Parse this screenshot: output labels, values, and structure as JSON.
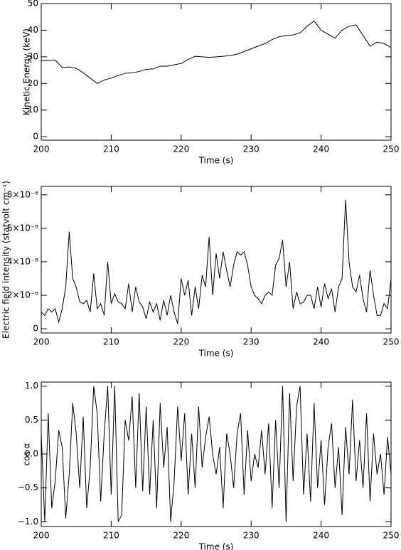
{
  "chart_data": [
    {
      "type": "line",
      "xlabel": "Time (s)",
      "ylabel": "Kinetic Energy (keV)",
      "color": "#000000",
      "xlim": [
        200,
        250
      ],
      "ylim": [
        -1.3,
        50
      ],
      "xticks": [
        200,
        210,
        220,
        230,
        240,
        250
      ],
      "yticks": [
        0,
        10,
        20,
        30,
        40,
        50
      ],
      "x": [
        200,
        201,
        202,
        203,
        204,
        205,
        206,
        207,
        208,
        209,
        210,
        211,
        212,
        213,
        214,
        215,
        216,
        217,
        218,
        219,
        220,
        221,
        222,
        223,
        224,
        225,
        226,
        227,
        228,
        229,
        230,
        231,
        232,
        233,
        234,
        235,
        236,
        237,
        238,
        239,
        240,
        241,
        242,
        243,
        244,
        245,
        246,
        247,
        248,
        249,
        250
      ],
      "values": [
        28.5,
        28.7,
        28.8,
        26,
        26.2,
        25.7,
        24,
        22,
        20,
        21.3,
        22,
        23,
        23.8,
        24,
        24.5,
        25.3,
        25.5,
        26.5,
        26.5,
        27,
        27.5,
        29,
        30.2,
        30,
        29.8,
        30,
        30.2,
        30.5,
        31,
        32,
        33,
        34,
        35,
        36.5,
        37.5,
        38,
        38.2,
        39,
        41.5,
        43.5,
        40,
        38.5,
        37,
        40,
        41.5,
        42,
        38,
        34,
        35.5,
        35,
        33.5
      ]
    },
    {
      "type": "line",
      "xlabel": "Time (s)",
      "ylabel": "Electric field intensity (statvolt cm⁻¹)",
      "color": "#000000",
      "xlim": [
        200,
        250
      ],
      "ylim": [
        -2.5e-09,
        8.5e-08
      ],
      "xticks": [
        200,
        210,
        220,
        230,
        240,
        250
      ],
      "yticks": [
        0,
        {
          "value": 2e-08,
          "label": "2×10⁻⁸"
        },
        {
          "value": 4e-08,
          "label": "4×10⁻⁸"
        },
        {
          "value": 6e-08,
          "label": "6×10⁻⁸"
        },
        {
          "value": 8e-08,
          "label": "8×10⁻⁸"
        }
      ],
      "x": [
        200,
        200.5,
        201,
        201.5,
        202,
        202.5,
        203,
        203.5,
        204,
        204.5,
        205,
        205.5,
        206,
        206.5,
        207,
        207.5,
        208,
        208.5,
        209,
        209.5,
        210,
        210.5,
        211,
        211.5,
        212,
        212.5,
        213,
        213.5,
        214,
        214.5,
        215,
        215.5,
        216,
        216.5,
        217,
        217.5,
        218,
        218.5,
        219,
        219.5,
        220,
        220.5,
        221,
        221.5,
        222,
        222.5,
        223,
        223.5,
        224,
        224.5,
        225,
        225.5,
        226,
        226.5,
        227,
        227.5,
        228,
        228.5,
        229,
        229.5,
        230,
        230.5,
        231,
        231.5,
        232,
        232.5,
        233,
        233.5,
        234,
        234.5,
        235,
        235.5,
        236,
        236.5,
        237,
        237.5,
        238,
        238.5,
        239,
        239.5,
        240,
        240.5,
        241,
        241.5,
        242,
        242.5,
        243,
        243.5,
        244,
        244.5,
        245,
        245.5,
        246,
        246.5,
        247,
        247.5,
        248,
        248.5,
        249,
        249.5,
        250
      ],
      "values": [
        1e-08,
        8e-09,
        1.2e-08,
        1e-08,
        1.2e-08,
        4e-09,
        1.2e-08,
        2.5e-08,
        5.8e-08,
        3e-08,
        2.5e-08,
        1.6e-08,
        1.5e-08,
        1.7e-08,
        1e-08,
        3.3e-08,
        1.2e-08,
        1.5e-08,
        8e-09,
        4e-08,
        1.5e-08,
        2.1e-08,
        1.6e-08,
        1.5e-08,
        1.2e-08,
        2.7e-08,
        1e-08,
        2.5e-08,
        1.6e-08,
        1.3e-08,
        6e-09,
        1.6e-08,
        1e-08,
        1.5e-08,
        5e-09,
        1.7e-08,
        8e-09,
        2e-08,
        1e-08,
        3e-09,
        3e-08,
        2e-08,
        2.9e-08,
        8e-09,
        2.5e-08,
        1.2e-08,
        3.2e-08,
        2.5e-08,
        5.5e-08,
        2e-08,
        4.5e-08,
        3e-08,
        4.6e-08,
        3.5e-08,
        2.5e-08,
        3.8e-08,
        4.6e-08,
        4.4e-08,
        4.6e-08,
        3.8e-08,
        2.5e-08,
        2e-08,
        1.8e-08,
        1.5e-08,
        2e-08,
        2.2e-08,
        2e-08,
        3.8e-08,
        4.2e-08,
        5.3e-08,
        2.5e-08,
        4e-08,
        1.2e-08,
        2.2e-08,
        1.5e-08,
        1.6e-08,
        2e-08,
        2e-08,
        1.2e-08,
        2.5e-08,
        1.3e-08,
        2.7e-08,
        1.8e-08,
        2.4e-08,
        1e-08,
        2.5e-08,
        3e-08,
        7.7e-08,
        4e-08,
        2.5e-08,
        2.2e-08,
        3.2e-08,
        1.8e-08,
        1e-08,
        3.5e-08,
        2e-08,
        8e-09,
        8e-09,
        1.5e-08,
        1.2e-08,
        3e-08
      ]
    },
    {
      "type": "line",
      "xlabel": "Time (s)",
      "ylabel": "cos α",
      "color": "#000000",
      "xlim": [
        200,
        250
      ],
      "ylim": [
        -1.07,
        1.06
      ],
      "xticks": [
        200,
        210,
        220,
        230,
        240,
        250
      ],
      "yticks": [
        {
          "value": -1,
          "label": "−1.0"
        },
        {
          "value": -0.5,
          "label": "−0.5"
        },
        {
          "value": 0,
          "label": "0.0"
        },
        0.5,
        {
          "value": 1,
          "label": "1.0"
        }
      ],
      "x": [
        200,
        200.5,
        201,
        201.5,
        202,
        202.5,
        203,
        203.5,
        204,
        204.5,
        205,
        205.5,
        206,
        206.5,
        207,
        207.5,
        208,
        208.5,
        209,
        209.5,
        210,
        210.5,
        211,
        211.5,
        212,
        212.5,
        213,
        213.5,
        214,
        214.5,
        215,
        215.5,
        216,
        216.5,
        217,
        217.5,
        218,
        218.5,
        219,
        219.5,
        220,
        220.5,
        221,
        221.5,
        222,
        222.5,
        223,
        223.5,
        224,
        224.5,
        225,
        225.5,
        226,
        226.5,
        227,
        227.5,
        228,
        228.5,
        229,
        229.5,
        230,
        230.5,
        231,
        231.5,
        232,
        232.5,
        233,
        233.5,
        234,
        234.5,
        235,
        235.5,
        236,
        236.5,
        237,
        237.5,
        238,
        238.5,
        239,
        239.5,
        240,
        240.5,
        241,
        241.5,
        242,
        242.5,
        243,
        243.5,
        244,
        244.5,
        245,
        245.5,
        246,
        246.5,
        247,
        247.5,
        248,
        248.5,
        249,
        249.5,
        250
      ],
      "values": [
        0.3,
        -1.0,
        0.6,
        -0.8,
        -0.4,
        0.35,
        0.1,
        -0.95,
        -0.3,
        0.75,
        0.3,
        -0.5,
        0.55,
        -0.8,
        -0.2,
        1.0,
        0.6,
        -0.7,
        0.3,
        1.0,
        -0.6,
        1.0,
        -1.0,
        -0.9,
        0.5,
        0.2,
        0.85,
        -0.5,
        0.9,
        -0.55,
        0.7,
        -0.6,
        0.5,
        -0.8,
        0.75,
        -0.2,
        0.4,
        -1.0,
        -0.4,
        0.7,
        -0.1,
        0.6,
        -0.6,
        0.3,
        -0.5,
        0.7,
        -0.2,
        0.25,
        0.55,
        0.0,
        -0.3,
        0.1,
        -0.8,
        0.3,
        0.0,
        -0.5,
        0.3,
        0.6,
        -0.6,
        0.35,
        -0.4,
        0.0,
        -0.2,
        0.35,
        -0.3,
        0.45,
        -0.8,
        0.5,
        -0.5,
        1.0,
        -1.0,
        0.9,
        -0.4,
        0.7,
        1.0,
        -0.6,
        0.3,
        -0.7,
        0.75,
        -0.5,
        0.2,
        -0.75,
        0.1,
        0.45,
        -0.5,
        0.1,
        -0.9,
        0.4,
        -0.3,
        0.8,
        -0.4,
        0.2,
        -0.5,
        0.6,
        -0.7,
        0.3,
        -0.3,
        0.0,
        -0.6,
        0.25,
        -0.3
      ]
    }
  ]
}
